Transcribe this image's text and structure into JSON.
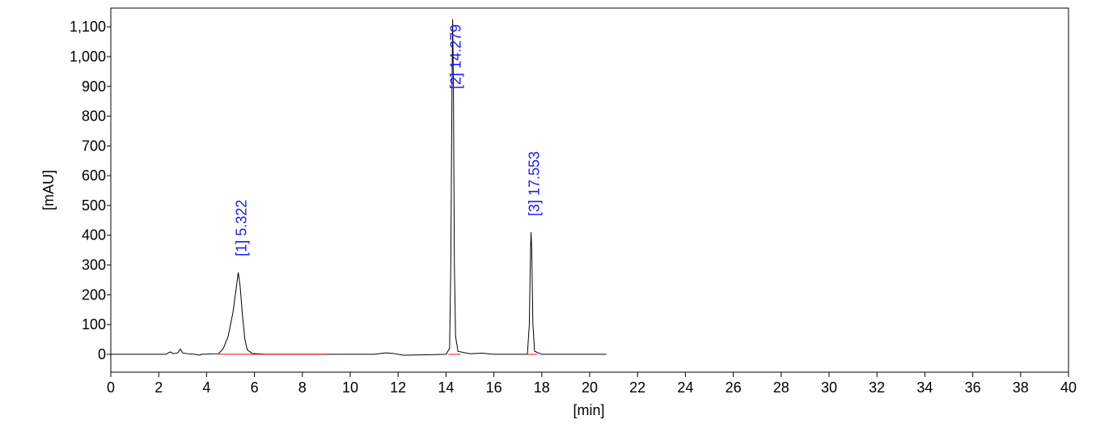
{
  "chart_data": {
    "type": "line",
    "x_label": "[min]",
    "y_label": "[mAU]",
    "xlim": [
      0,
      40
    ],
    "ylim": [
      -60,
      1163
    ],
    "xticks": [
      0,
      2,
      4,
      6,
      8,
      10,
      12,
      14,
      16,
      18,
      20,
      22,
      24,
      26,
      28,
      30,
      32,
      34,
      36,
      38,
      40
    ],
    "yticks": [
      0,
      100,
      200,
      300,
      400,
      500,
      600,
      700,
      800,
      900,
      {
        "value": 1000,
        "label": "1,000"
      },
      {
        "value": 1100,
        "label": "1,100"
      }
    ],
    "series": [
      {
        "color": "#000000",
        "x": [
          0,
          2.3,
          2.4,
          2.5,
          2.6,
          2.8,
          2.9,
          3.0,
          3.2,
          3.5,
          3.7,
          3.8,
          4.5,
          4.7,
          4.9,
          5.1,
          5.25,
          5.322,
          5.4,
          5.5,
          5.6,
          5.7,
          5.9,
          6.5,
          11,
          11.5,
          11.8,
          12.2,
          13,
          14.0,
          14.15,
          14.2,
          14.25,
          14.279,
          14.31,
          14.35,
          14.4,
          14.5,
          15,
          15.5,
          16,
          17.4,
          17.48,
          17.53,
          17.553,
          17.58,
          17.63,
          17.7,
          18,
          20.7
        ],
        "values": [
          0,
          0,
          5,
          8,
          2,
          5,
          18,
          5,
          2,
          0,
          -3,
          0,
          2,
          20,
          60,
          140,
          230,
          275,
          230,
          130,
          50,
          15,
          3,
          0,
          0,
          5,
          3,
          -3,
          -2,
          0,
          20,
          300,
          900,
          1125,
          900,
          300,
          60,
          10,
          2,
          4,
          0,
          0,
          100,
          350,
          410,
          350,
          100,
          10,
          0,
          0
        ]
      }
    ],
    "baselines": [
      {
        "color": "#ff0000",
        "x": [
          4.5,
          9
        ],
        "values": [
          0,
          0
        ]
      },
      {
        "color": "#ff0000",
        "x": [
          14.1,
          14.6
        ],
        "values": [
          0,
          0
        ]
      },
      {
        "color": "#ff0000",
        "x": [
          17.4,
          17.8
        ],
        "values": [
          0,
          0
        ]
      }
    ],
    "annotations": [
      {
        "text": "[1]  5.322",
        "x": 5.322
      },
      {
        "text": "[2]  14.279",
        "x": 14.279
      },
      {
        "text": "[3]  17.553",
        "x": 17.553
      }
    ]
  }
}
